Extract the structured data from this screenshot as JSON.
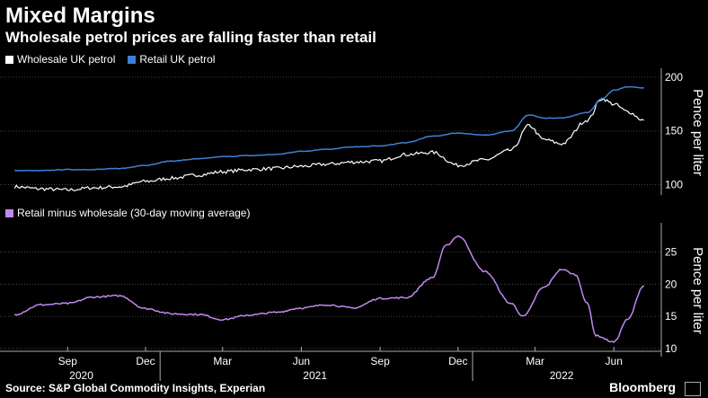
{
  "title": "Mixed Margins",
  "subtitle": "Wholesale petrol prices are falling faster than retail",
  "source": "Source: S&P Global Commodity Insights, Experian",
  "brand": "Bloomberg",
  "brand_badge": "",
  "colors": {
    "wholesale": "#ffffff",
    "retail": "#3f7fd6",
    "margin": "#c387f0"
  },
  "x_axis": {
    "months": [
      "Sep",
      "Dec",
      "Mar",
      "Jun",
      "Sep",
      "Dec",
      "Mar",
      "Jun"
    ],
    "years": [
      "2020",
      "2021",
      "2022"
    ]
  },
  "chart_data": [
    {
      "type": "line",
      "legend": [
        "Wholesale UK petrol",
        "Retail UK petrol"
      ],
      "ylabel": "Pence per liter",
      "ylim": [
        92,
        205
      ],
      "yticks": [
        100,
        150,
        200
      ],
      "x": [
        "2020-07-15",
        "2020-08-15",
        "2020-09-15",
        "2020-10-15",
        "2020-11-15",
        "2020-12-15",
        "2021-01-15",
        "2021-02-15",
        "2021-03-15",
        "2021-04-15",
        "2021-05-15",
        "2021-06-15",
        "2021-07-15",
        "2021-08-15",
        "2021-09-15",
        "2021-10-15",
        "2021-11-15",
        "2021-12-15",
        "2022-01-15",
        "2022-02-15",
        "2022-03-08",
        "2022-03-25",
        "2022-04-15",
        "2022-05-15",
        "2022-06-01",
        "2022-06-15",
        "2022-07-01",
        "2022-07-20"
      ],
      "series": [
        {
          "name": "Wholesale UK petrol",
          "values": [
            98,
            96,
            95,
            97,
            98,
            103,
            106,
            109,
            112,
            114,
            115,
            117,
            119,
            121,
            122,
            128,
            130,
            118,
            123,
            132,
            155,
            142,
            138,
            160,
            180,
            175,
            168,
            160
          ]
        },
        {
          "name": "Retail UK petrol",
          "values": [
            113,
            113,
            114,
            114,
            115,
            118,
            122,
            124,
            126,
            127,
            128,
            131,
            133,
            135,
            136,
            139,
            145,
            148,
            146,
            150,
            165,
            162,
            162,
            167,
            180,
            188,
            191,
            190
          ]
        }
      ]
    },
    {
      "type": "line",
      "legend": [
        "Retail minus wholesale (30-day moving average)"
      ],
      "ylabel": "Pence per liter",
      "ylim": [
        9,
        29
      ],
      "yticks": [
        10,
        15,
        20,
        25
      ],
      "x": [
        "2020-07-15",
        "2020-08-15",
        "2020-09-15",
        "2020-10-15",
        "2020-11-15",
        "2020-12-15",
        "2021-01-15",
        "2021-02-15",
        "2021-03-15",
        "2021-04-15",
        "2021-05-15",
        "2021-06-15",
        "2021-07-15",
        "2021-08-15",
        "2021-09-15",
        "2021-10-15",
        "2021-11-15",
        "2021-12-01",
        "2021-12-15",
        "2022-01-15",
        "2022-02-15",
        "2022-03-01",
        "2022-03-25",
        "2022-04-15",
        "2022-05-01",
        "2022-05-15",
        "2022-05-25",
        "2022-06-15",
        "2022-07-01",
        "2022-07-20"
      ],
      "series": [
        {
          "name": "Retail minus wholesale (30-day moving average)",
          "values": [
            15.3,
            16.8,
            17.0,
            18.0,
            18.2,
            16.2,
            15.4,
            15.3,
            14.5,
            15.2,
            15.6,
            16.3,
            16.8,
            16.3,
            17.8,
            17.9,
            21.0,
            26.0,
            27.5,
            22.0,
            17.0,
            15.0,
            19.5,
            22.3,
            21.5,
            17.0,
            12.0,
            11.0,
            14.5,
            19.8
          ]
        }
      ]
    }
  ]
}
